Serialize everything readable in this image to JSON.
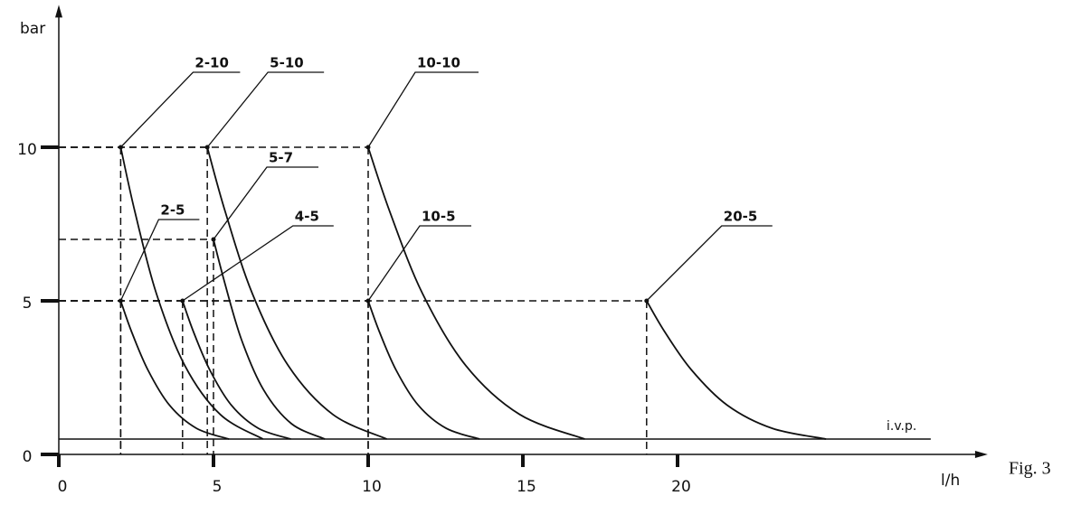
{
  "chart_data": {
    "type": "line",
    "y_label": "bar",
    "x_label": "l/h",
    "caption": "Fig. 3",
    "xlim": [
      0,
      29.5
    ],
    "ylim": [
      0,
      14.4
    ],
    "xticks": [
      0,
      5,
      10,
      15,
      20
    ],
    "yticks": [
      0,
      5,
      10
    ],
    "reference_line": {
      "label": "i.v.p.",
      "value": 0.5
    },
    "color": "#111111",
    "series": [
      {
        "name": "2-10",
        "x": [
          2,
          2.46,
          3.15,
          4.07,
          5.22,
          6.6
        ],
        "values": [
          10,
          7.9,
          5.25,
          2.9,
          1.3,
          0.5
        ]
      },
      {
        "name": "5-10",
        "x": [
          4.8,
          5.38,
          6.25,
          7.41,
          8.86,
          10.6
        ],
        "values": [
          10,
          7.9,
          5.25,
          2.9,
          1.3,
          0.5
        ]
      },
      {
        "name": "10-10",
        "x": [
          10,
          10.7,
          11.75,
          13.15,
          14.9,
          17
        ],
        "values": [
          10,
          7.9,
          5.25,
          2.9,
          1.3,
          0.5
        ]
      },
      {
        "name": "5-7",
        "x": [
          5,
          5.36,
          5.9,
          6.62,
          7.52,
          8.6
        ],
        "values": [
          7,
          5.6,
          3.75,
          2.1,
          1.0,
          0.5
        ]
      },
      {
        "name": "2-5",
        "x": [
          2,
          2.35,
          2.88,
          3.58,
          4.45,
          5.5
        ],
        "values": [
          5,
          4.0,
          2.75,
          1.6,
          0.85,
          0.5
        ]
      },
      {
        "name": "4-5",
        "x": [
          4,
          4.35,
          4.88,
          5.58,
          6.45,
          7.5
        ],
        "values": [
          5,
          4.0,
          2.75,
          1.6,
          0.85,
          0.5
        ]
      },
      {
        "name": "10-5",
        "x": [
          10,
          10.36,
          10.9,
          11.62,
          12.52,
          13.6
        ],
        "values": [
          5,
          4.0,
          2.75,
          1.6,
          0.85,
          0.5
        ]
      },
      {
        "name": "20-5",
        "x": [
          19,
          19.58,
          20.45,
          21.61,
          23.06,
          24.8
        ],
        "values": [
          5,
          4.0,
          2.75,
          1.6,
          0.85,
          0.5
        ]
      }
    ]
  }
}
